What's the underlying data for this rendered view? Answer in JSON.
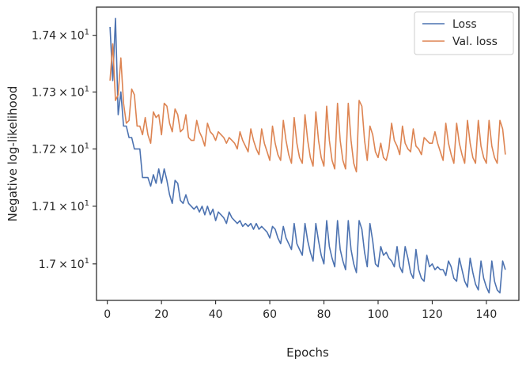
{
  "chart_data": {
    "type": "line",
    "xlabel": "Epochs",
    "ylabel": "Negative log-likelihood",
    "xlim": [
      -4,
      152
    ],
    "ylim": [
      16.937,
      17.45
    ],
    "yscale": "log",
    "grid": false,
    "legend_position": "top-right",
    "xticks": [
      0,
      20,
      40,
      60,
      80,
      100,
      120,
      140
    ],
    "yticks": [
      {
        "value": 17.0,
        "mantissa": "1.7",
        "base": "10",
        "exp": "1"
      },
      {
        "value": 17.1,
        "mantissa": "1.71",
        "base": "10",
        "exp": "1"
      },
      {
        "value": 17.2,
        "mantissa": "1.72",
        "base": "10",
        "exp": "1"
      },
      {
        "value": 17.3,
        "mantissa": "1.73",
        "base": "10",
        "exp": "1"
      },
      {
        "value": 17.4,
        "mantissa": "1.74",
        "base": "10",
        "exp": "1"
      }
    ],
    "series": [
      {
        "name": "Loss",
        "color": "#4c72b0",
        "x": [
          1,
          2,
          3,
          4,
          5,
          6,
          7,
          8,
          9,
          10,
          11,
          12,
          13,
          14,
          15,
          16,
          17,
          18,
          19,
          20,
          21,
          22,
          23,
          24,
          25,
          26,
          27,
          28,
          29,
          30,
          31,
          32,
          33,
          34,
          35,
          36,
          37,
          38,
          39,
          40,
          41,
          42,
          43,
          44,
          45,
          46,
          47,
          48,
          49,
          50,
          51,
          52,
          53,
          54,
          55,
          56,
          57,
          58,
          59,
          60,
          61,
          62,
          63,
          64,
          65,
          66,
          67,
          68,
          69,
          70,
          71,
          72,
          73,
          74,
          75,
          76,
          77,
          78,
          79,
          80,
          81,
          82,
          83,
          84,
          85,
          86,
          87,
          88,
          89,
          90,
          91,
          92,
          93,
          94,
          95,
          96,
          97,
          98,
          99,
          100,
          101,
          102,
          103,
          104,
          105,
          106,
          107,
          108,
          109,
          110,
          111,
          112,
          113,
          114,
          115,
          116,
          117,
          118,
          119,
          120,
          121,
          122,
          123,
          124,
          125,
          126,
          127,
          128,
          129,
          130,
          131,
          132,
          133,
          134,
          135,
          136,
          137,
          138,
          139,
          140,
          141,
          142,
          143,
          144,
          145,
          146,
          147
        ],
        "values": [
          17.415,
          17.32,
          17.43,
          17.26,
          17.3,
          17.24,
          17.24,
          17.22,
          17.22,
          17.2,
          17.2,
          17.2,
          17.15,
          17.15,
          17.15,
          17.135,
          17.155,
          17.14,
          17.165,
          17.14,
          17.165,
          17.145,
          17.12,
          17.105,
          17.145,
          17.14,
          17.11,
          17.105,
          17.12,
          17.105,
          17.1,
          17.095,
          17.1,
          17.09,
          17.1,
          17.085,
          17.1,
          17.085,
          17.095,
          17.075,
          17.09,
          17.085,
          17.08,
          17.07,
          17.09,
          17.08,
          17.075,
          17.07,
          17.075,
          17.065,
          17.07,
          17.065,
          17.07,
          17.06,
          17.07,
          17.06,
          17.065,
          17.06,
          17.055,
          17.045,
          17.065,
          17.06,
          17.045,
          17.035,
          17.065,
          17.045,
          17.035,
          17.025,
          17.07,
          17.035,
          17.025,
          17.015,
          17.07,
          17.04,
          17.02,
          17.005,
          17.07,
          17.04,
          17.015,
          17.0,
          17.075,
          17.03,
          17.01,
          16.995,
          17.075,
          17.025,
          17.005,
          16.99,
          17.075,
          17.025,
          17.0,
          16.985,
          17.075,
          17.06,
          17.02,
          16.995,
          17.07,
          17.04,
          17.0,
          16.995,
          17.03,
          17.015,
          17.02,
          17.01,
          17.005,
          16.995,
          17.03,
          16.995,
          16.985,
          17.03,
          17.01,
          16.985,
          16.975,
          17.025,
          16.99,
          16.975,
          16.97,
          17.015,
          16.995,
          17.0,
          16.99,
          16.995,
          16.99,
          16.99,
          16.98,
          17.005,
          16.995,
          16.975,
          16.97,
          17.01,
          16.99,
          16.97,
          16.96,
          17.01,
          16.985,
          16.965,
          16.955,
          17.005,
          16.975,
          16.96,
          16.95,
          17.005,
          16.97,
          16.955,
          16.95,
          17.005,
          16.99
        ]
      },
      {
        "name": "Val. loss",
        "color": "#dd8452",
        "x": [
          1,
          2,
          3,
          4,
          5,
          6,
          7,
          8,
          9,
          10,
          11,
          12,
          13,
          14,
          15,
          16,
          17,
          18,
          19,
          20,
          21,
          22,
          23,
          24,
          25,
          26,
          27,
          28,
          29,
          30,
          31,
          32,
          33,
          34,
          35,
          36,
          37,
          38,
          39,
          40,
          41,
          42,
          43,
          44,
          45,
          46,
          47,
          48,
          49,
          50,
          51,
          52,
          53,
          54,
          55,
          56,
          57,
          58,
          59,
          60,
          61,
          62,
          63,
          64,
          65,
          66,
          67,
          68,
          69,
          70,
          71,
          72,
          73,
          74,
          75,
          76,
          77,
          78,
          79,
          80,
          81,
          82,
          83,
          84,
          85,
          86,
          87,
          88,
          89,
          90,
          91,
          92,
          93,
          94,
          95,
          96,
          97,
          98,
          99,
          100,
          101,
          102,
          103,
          104,
          105,
          106,
          107,
          108,
          109,
          110,
          111,
          112,
          113,
          114,
          115,
          116,
          117,
          118,
          119,
          120,
          121,
          122,
          123,
          124,
          125,
          126,
          127,
          128,
          129,
          130,
          131,
          132,
          133,
          134,
          135,
          136,
          137,
          138,
          139,
          140,
          141,
          142,
          143,
          144,
          145,
          146,
          147
        ],
        "values": [
          17.32,
          17.385,
          17.285,
          17.295,
          17.36,
          17.28,
          17.245,
          17.25,
          17.305,
          17.295,
          17.24,
          17.24,
          17.225,
          17.255,
          17.225,
          17.21,
          17.265,
          17.255,
          17.26,
          17.225,
          17.28,
          17.275,
          17.245,
          17.23,
          17.27,
          17.26,
          17.23,
          17.235,
          17.26,
          17.22,
          17.215,
          17.215,
          17.25,
          17.23,
          17.22,
          17.205,
          17.245,
          17.23,
          17.225,
          17.215,
          17.23,
          17.225,
          17.22,
          17.21,
          17.22,
          17.215,
          17.21,
          17.2,
          17.23,
          17.215,
          17.205,
          17.195,
          17.235,
          17.215,
          17.2,
          17.19,
          17.235,
          17.21,
          17.195,
          17.18,
          17.24,
          17.21,
          17.19,
          17.18,
          17.25,
          17.215,
          17.19,
          17.175,
          17.255,
          17.21,
          17.185,
          17.175,
          17.26,
          17.215,
          17.185,
          17.17,
          17.265,
          17.215,
          17.185,
          17.17,
          17.275,
          17.215,
          17.18,
          17.165,
          17.28,
          17.215,
          17.18,
          17.165,
          17.28,
          17.215,
          17.175,
          17.16,
          17.285,
          17.275,
          17.215,
          17.18,
          17.24,
          17.225,
          17.195,
          17.185,
          17.21,
          17.185,
          17.18,
          17.2,
          17.245,
          17.215,
          17.205,
          17.19,
          17.24,
          17.21,
          17.2,
          17.195,
          17.235,
          17.205,
          17.2,
          17.19,
          17.22,
          17.215,
          17.21,
          17.21,
          17.23,
          17.21,
          17.195,
          17.18,
          17.245,
          17.21,
          17.19,
          17.175,
          17.245,
          17.21,
          17.19,
          17.175,
          17.25,
          17.21,
          17.185,
          17.175,
          17.25,
          17.205,
          17.185,
          17.175,
          17.25,
          17.205,
          17.185,
          17.175,
          17.25,
          17.235,
          17.19
        ]
      }
    ]
  }
}
